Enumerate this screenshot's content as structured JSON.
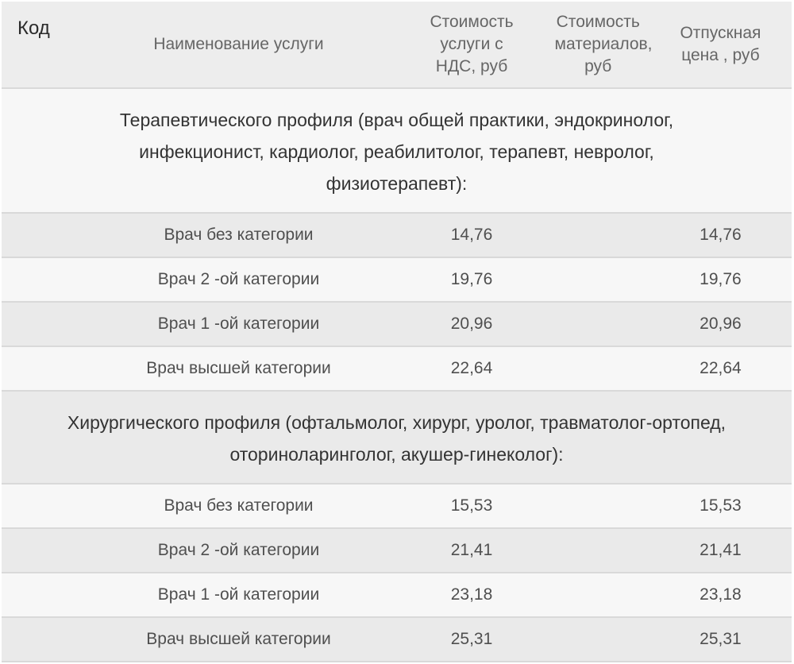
{
  "colors": {
    "header_bg": "#ededed",
    "stripe_dark": "#eaeaea",
    "stripe_light": "#f7f7f7",
    "border_color": "#d9d9d9",
    "header_text": "#666666",
    "code_text": "#2b2b2b",
    "section_text": "#333333",
    "row_text": "#4f4f4f"
  },
  "table": {
    "columns": [
      {
        "label": "Код"
      },
      {
        "label": "Наименование услуги"
      },
      {
        "label": "Стоимость\nуслуги с\nНДС, руб"
      },
      {
        "label": "Стоимость\nматериалов,\nруб"
      },
      {
        "label": "Отпускная\nцена , руб"
      }
    ],
    "sections": [
      {
        "title": "Терапевтического профиля (врач общей практики, эндокринолог,\nинфекционист, кардиолог, реабилитолог, терапевт, невролог,\nфизиотерапевт):",
        "rows": [
          {
            "code": "",
            "name": "Врач без категории",
            "service_cost_with_vat": "14,76",
            "materials_cost": "",
            "selling_price": "14,76"
          },
          {
            "code": "",
            "name": "Врач 2 -ой категории",
            "service_cost_with_vat": "19,76",
            "materials_cost": "",
            "selling_price": "19,76"
          },
          {
            "code": "",
            "name": "Врач 1 -ой категории",
            "service_cost_with_vat": "20,96",
            "materials_cost": "",
            "selling_price": "20,96"
          },
          {
            "code": "",
            "name": "Врач высшей категории",
            "service_cost_with_vat": "22,64",
            "materials_cost": "",
            "selling_price": "22,64"
          }
        ]
      },
      {
        "title": "Хирургического профиля (офтальмолог, хирург, уролог, травматолог-ортопед,\nоториноларинголог, акушер-гинеколог):",
        "rows": [
          {
            "code": "",
            "name": "Врач без категории",
            "service_cost_with_vat": "15,53",
            "materials_cost": "",
            "selling_price": "15,53"
          },
          {
            "code": "",
            "name": "Врач 2 -ой категории",
            "service_cost_with_vat": "21,41",
            "materials_cost": "",
            "selling_price": "21,41"
          },
          {
            "code": "",
            "name": "Врач 1 -ой категории",
            "service_cost_with_vat": "23,18",
            "materials_cost": "",
            "selling_price": "23,18"
          },
          {
            "code": "",
            "name": "Врач высшей категории",
            "service_cost_with_vat": "25,31",
            "materials_cost": "",
            "selling_price": "25,31"
          }
        ]
      }
    ]
  }
}
